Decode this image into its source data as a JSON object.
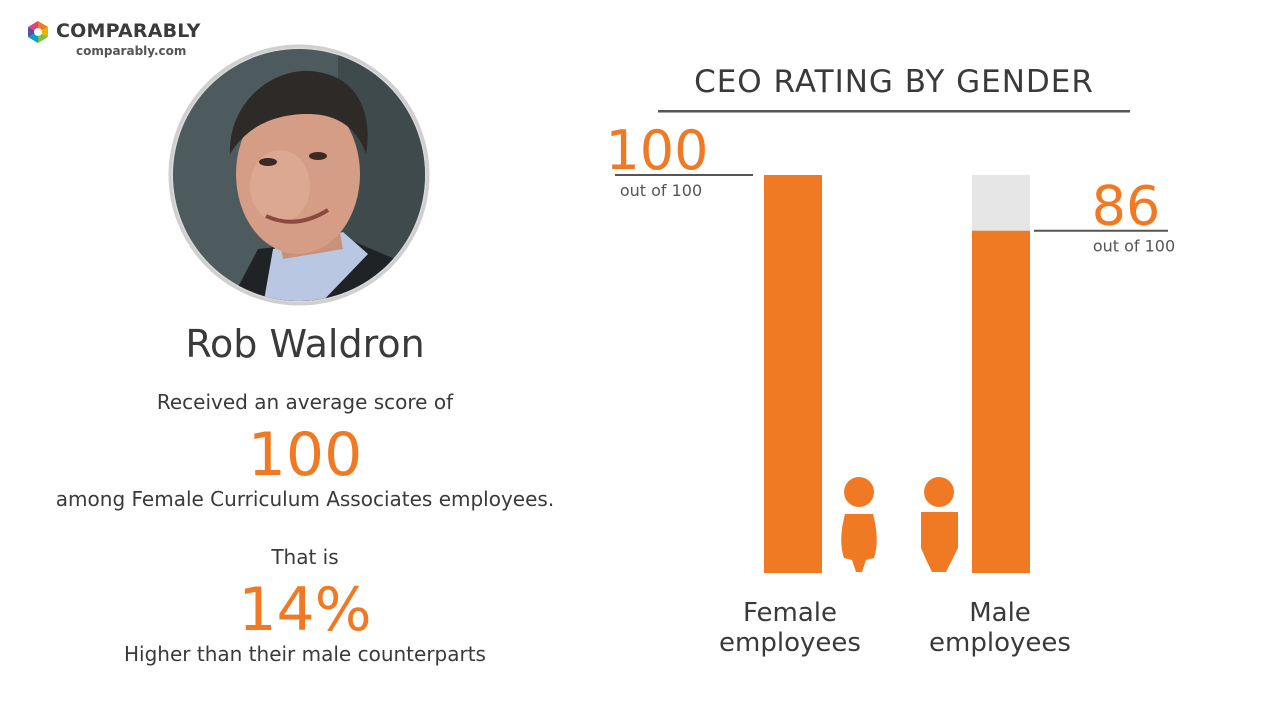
{
  "brand": {
    "name": "COMPARABLY",
    "url": "comparably.com"
  },
  "person": {
    "name": "Rob Waldron",
    "received_text": "Received an average score of",
    "score": "100",
    "among_text": "among Female Curriculum Associates employees.",
    "that_is": "That is",
    "percent": "14%",
    "higher_text": "Higher than their male counterparts"
  },
  "colors": {
    "accent": "#f07a24",
    "track": "#e6e6e6",
    "rule": "#555555"
  },
  "chart_data": {
    "type": "bar",
    "title": "CEO RATING BY GENDER",
    "categories": [
      "Female employees",
      "Male employees"
    ],
    "category_lines": [
      [
        "Female",
        "employees"
      ],
      [
        "Male",
        "employees"
      ]
    ],
    "values": [
      100,
      86
    ],
    "value_labels": [
      "100",
      "86"
    ],
    "sub_labels": [
      "out of 100",
      "out of 100"
    ],
    "ylim": [
      0,
      100
    ],
    "icons": [
      "female-person-icon",
      "male-person-icon"
    ]
  }
}
